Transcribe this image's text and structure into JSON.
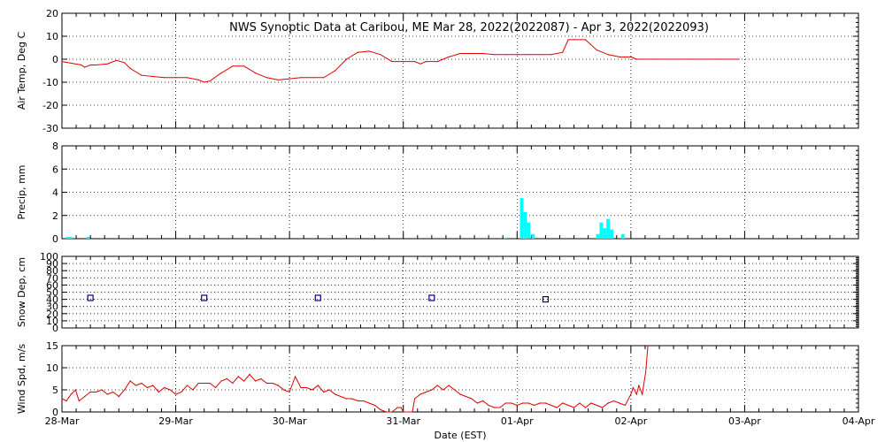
{
  "title": "NWS Synoptic Data at Caribou, ME   Mar 28, 2022(2022087) - Apr  3, 2022(2022093)",
  "xlabel": "Date (EST)",
  "xticks": [
    "28-Mar",
    "29-Mar",
    "30-Mar",
    "31-Mar",
    "01-Apr",
    "02-Apr",
    "03-Apr",
    "04-Apr"
  ],
  "colors": {
    "line": "#dd0000",
    "precip": "#00ffff",
    "snow": "#000080",
    "axes": "#000000"
  },
  "chart_data": [
    {
      "type": "line",
      "ylabel": "Air Temp, Deg C",
      "ylim": [
        -30,
        20
      ],
      "yticks": [
        -30,
        -20,
        -10,
        0,
        10,
        20
      ],
      "x_unit": "days since 28-Mar 00:00 EST",
      "series": [
        {
          "x": [
            0,
            0.17,
            0.2,
            0.25,
            0.3,
            0.4,
            0.48,
            0.55,
            0.6,
            0.7,
            0.8,
            0.9,
            1.0,
            1.1,
            1.2,
            1.25,
            1.3,
            1.4,
            1.5,
            1.6,
            1.7,
            1.8,
            1.9,
            2.0,
            2.1,
            2.2,
            2.3,
            2.4,
            2.5,
            2.6,
            2.7,
            2.8,
            2.9,
            3.0,
            3.1,
            3.15,
            3.2,
            3.3,
            3.4,
            3.5,
            3.6,
            3.7,
            3.8,
            3.9,
            4.0,
            4.1,
            4.2,
            4.3,
            4.4,
            4.45,
            4.5,
            4.6,
            4.7,
            4.8,
            4.9,
            5.0,
            5.05,
            5.1,
            5.2,
            5.5,
            5.8,
            5.95
          ],
          "y": [
            -1,
            -2.5,
            -3.5,
            -2.5,
            -2.5,
            -2,
            -0.5,
            -1.5,
            -4,
            -7,
            -7.5,
            -8,
            -8,
            -8,
            -9,
            -10,
            -9.5,
            -6,
            -3,
            -3,
            -6,
            -8,
            -9,
            -8.5,
            -8,
            -8,
            -8,
            -5,
            0,
            3,
            3.5,
            2,
            -1,
            -1,
            -1,
            -2,
            -1,
            -1,
            1,
            2.5,
            2.5,
            2.5,
            2,
            2,
            2,
            2,
            2,
            2,
            3,
            8.5,
            8.5,
            8.5,
            4,
            2,
            1,
            1,
            0,
            0,
            0,
            0,
            0,
            0
          ]
        }
      ]
    },
    {
      "type": "bar",
      "ylabel": "Precip, mm",
      "ylim": [
        0,
        8
      ],
      "yticks": [
        0,
        2,
        4,
        6,
        8
      ],
      "bar_width_days": 0.03,
      "bars": [
        {
          "x": 0.05,
          "y": 0.15
        },
        {
          "x": 0.08,
          "y": 0.15
        },
        {
          "x": 0.23,
          "y": 0.15
        },
        {
          "x": 3.9,
          "y": 0.1
        },
        {
          "x": 4.04,
          "y": 3.5
        },
        {
          "x": 4.07,
          "y": 2.3
        },
        {
          "x": 4.1,
          "y": 1.4
        },
        {
          "x": 4.14,
          "y": 0.4
        },
        {
          "x": 4.71,
          "y": 0.4
        },
        {
          "x": 4.74,
          "y": 1.4
        },
        {
          "x": 4.77,
          "y": 0.9
        },
        {
          "x": 4.8,
          "y": 1.7
        },
        {
          "x": 4.83,
          "y": 0.8
        },
        {
          "x": 4.93,
          "y": 0.4
        }
      ]
    },
    {
      "type": "scatter",
      "ylabel": "Snow Dep, cm",
      "ylim": [
        0,
        100
      ],
      "yticks": [
        0,
        10,
        20,
        30,
        40,
        50,
        60,
        70,
        80,
        90,
        100
      ],
      "x": [
        0.25,
        1.25,
        2.25,
        3.25,
        4.25
      ],
      "y": [
        42,
        42,
        42,
        42,
        40
      ]
    },
    {
      "type": "line",
      "ylabel": "Wind Spd, m/s",
      "ylim": [
        0,
        15
      ],
      "yticks": [
        0,
        5,
        10,
        15
      ],
      "series": [
        {
          "x": [
            0,
            0.04,
            0.08,
            0.12,
            0.15,
            0.2,
            0.25,
            0.3,
            0.35,
            0.4,
            0.45,
            0.5,
            0.55,
            0.6,
            0.65,
            0.7,
            0.75,
            0.8,
            0.85,
            0.9,
            0.95,
            1.0,
            1.05,
            1.1,
            1.15,
            1.2,
            1.25,
            1.3,
            1.35,
            1.4,
            1.45,
            1.5,
            1.55,
            1.6,
            1.65,
            1.7,
            1.75,
            1.8,
            1.85,
            1.9,
            1.95,
            2.0,
            2.05,
            2.1,
            2.15,
            2.2,
            2.25,
            2.3,
            2.35,
            2.4,
            2.45,
            2.5,
            2.55,
            2.6,
            2.65,
            2.7,
            2.75,
            2.8,
            2.85,
            2.9,
            2.95,
            2.98,
            3.0,
            3.05,
            3.08,
            3.1,
            3.15,
            3.2,
            3.25,
            3.3,
            3.35,
            3.4,
            3.45,
            3.5,
            3.55,
            3.6,
            3.65,
            3.7,
            3.75,
            3.8,
            3.85,
            3.9,
            3.95,
            4.0,
            4.05,
            4.1,
            4.15,
            4.2,
            4.25,
            4.3,
            4.35,
            4.4,
            4.45,
            4.5,
            4.55,
            4.6,
            4.65,
            4.7,
            4.75,
            4.8,
            4.85,
            4.9,
            4.95,
            5.0,
            5.02,
            5.05,
            5.07,
            5.1,
            5.13,
            5.15
          ],
          "y": [
            3,
            2.5,
            4,
            5,
            2.5,
            3.5,
            4.5,
            4.5,
            5,
            4,
            4.5,
            3.5,
            5,
            7,
            6,
            6.5,
            5.5,
            6,
            4.5,
            5.5,
            5,
            4,
            4.5,
            6,
            5,
            6.5,
            6.5,
            6.5,
            5.5,
            7,
            7.5,
            6.5,
            8,
            7,
            8.5,
            7,
            7.5,
            6.5,
            6.5,
            6,
            5,
            4.5,
            8,
            5.5,
            5.5,
            5,
            6,
            4.5,
            5,
            4,
            3.5,
            3,
            3,
            2.5,
            2.5,
            2,
            1.5,
            0.5,
            0,
            0,
            1,
            1,
            0,
            0,
            0,
            3,
            4,
            4.5,
            5,
            6,
            5,
            6,
            5,
            4,
            3.5,
            3,
            2,
            2.5,
            1.5,
            1,
            1,
            2,
            2,
            1.5,
            2,
            2,
            1.5,
            2,
            2,
            1.5,
            1,
            2,
            1.5,
            1,
            2,
            1,
            2,
            1.5,
            1,
            2,
            2.5,
            2,
            1.5,
            4,
            5.5,
            4,
            6,
            4,
            9,
            15
          ]
        }
      ]
    }
  ]
}
